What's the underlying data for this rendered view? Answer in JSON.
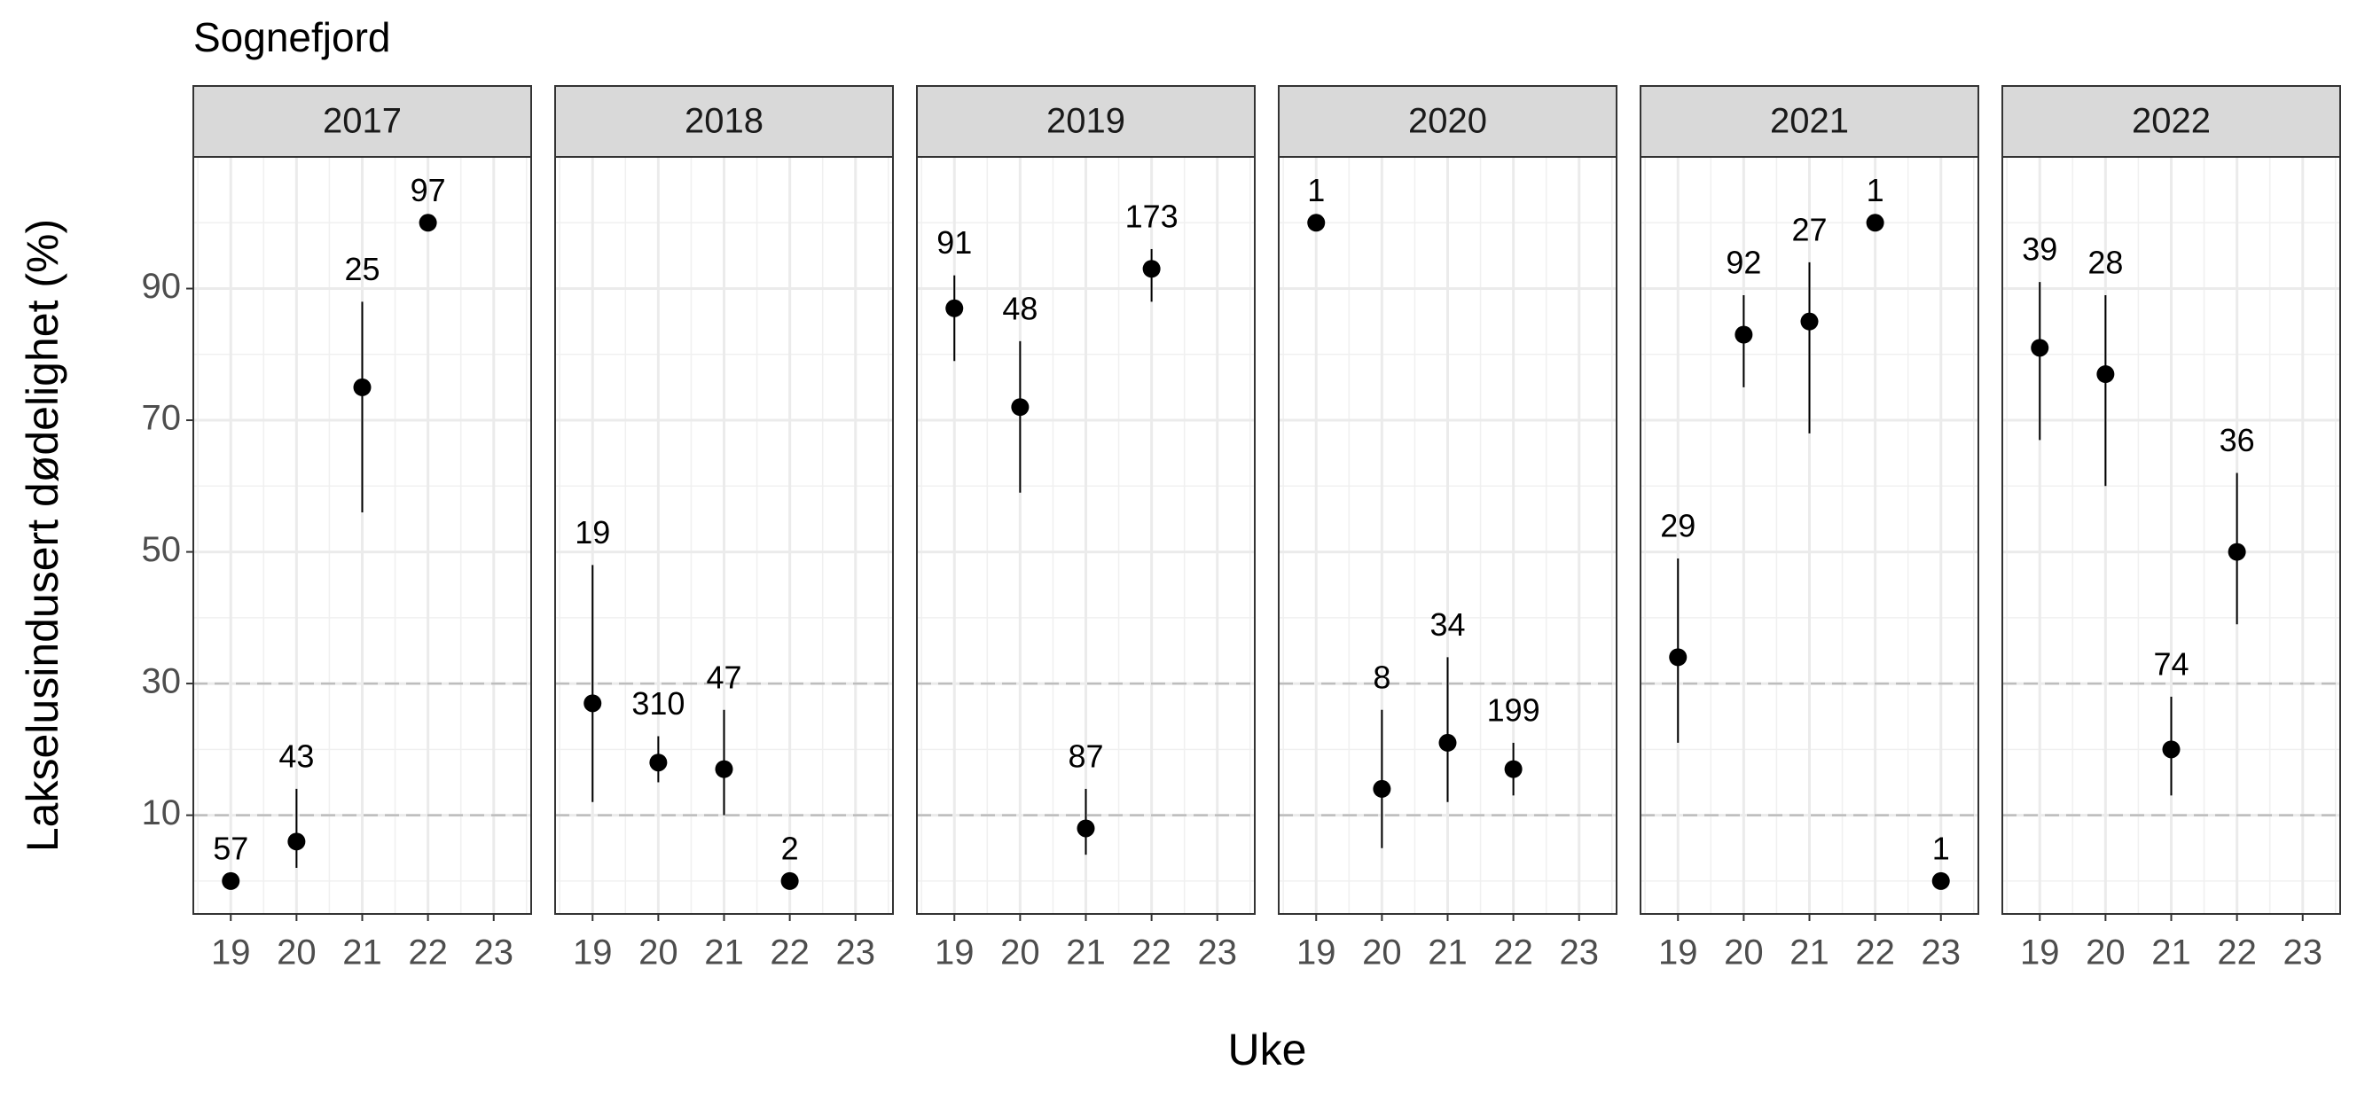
{
  "chart_data": {
    "type": "scatter",
    "title": "Sognefjord",
    "x_label": "Uke",
    "y_label": "Lakselusindusert dødelighet (%)",
    "xlim": [
      18.43,
      23.57
    ],
    "xticks": [
      19,
      20,
      21,
      22,
      23
    ],
    "ylim": [
      -5,
      110
    ],
    "yticks": [
      10,
      30,
      50,
      70,
      90
    ],
    "reference_lines": [
      10,
      30
    ],
    "grid": true,
    "color": "#000000",
    "panels": [
      {
        "title": "2017",
        "x": [
          19,
          20,
          21,
          22
        ],
        "values": [
          0,
          6,
          75,
          100
        ],
        "lower": [
          null,
          2,
          56,
          null
        ],
        "upper": [
          null,
          14,
          88,
          null
        ],
        "n": [
          57,
          43,
          25,
          97
        ]
      },
      {
        "title": "2018",
        "x": [
          19,
          20,
          21,
          22
        ],
        "values": [
          27,
          18,
          17,
          0
        ],
        "lower": [
          12,
          15,
          10,
          null
        ],
        "upper": [
          48,
          22,
          26,
          null
        ],
        "n": [
          19,
          310,
          47,
          2
        ]
      },
      {
        "title": "2019",
        "x": [
          19,
          20,
          21,
          22
        ],
        "values": [
          87,
          72,
          8,
          93
        ],
        "lower": [
          79,
          59,
          4,
          88
        ],
        "upper": [
          92,
          82,
          14,
          96
        ],
        "n": [
          91,
          48,
          87,
          173
        ]
      },
      {
        "title": "2020",
        "x": [
          19,
          20,
          21,
          22
        ],
        "values": [
          100,
          14,
          21,
          17
        ],
        "lower": [
          null,
          5,
          12,
          13
        ],
        "upper": [
          null,
          26,
          34,
          21
        ],
        "n": [
          1,
          8,
          34,
          199
        ]
      },
      {
        "title": "2021",
        "x": [
          19,
          20,
          21,
          22,
          23
        ],
        "values": [
          34,
          83,
          85,
          100,
          0
        ],
        "lower": [
          21,
          75,
          68,
          null,
          null
        ],
        "upper": [
          49,
          89,
          94,
          null,
          null
        ],
        "n": [
          29,
          92,
          27,
          1,
          1
        ]
      },
      {
        "title": "2022",
        "x": [
          19,
          20,
          21,
          22
        ],
        "values": [
          81,
          77,
          20,
          50
        ],
        "lower": [
          67,
          60,
          13,
          39
        ],
        "upper": [
          91,
          89,
          28,
          62
        ],
        "n": [
          39,
          28,
          74,
          36
        ]
      }
    ]
  }
}
